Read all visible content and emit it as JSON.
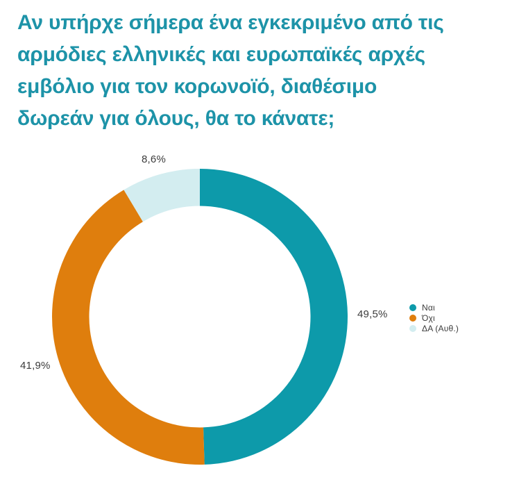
{
  "page": {
    "background": "#ffffff"
  },
  "chart_data": {
    "type": "pie",
    "subtype": "donut",
    "title": "Αν υπήρχε σήμερα ένα εγκεκριμένο από τις\nαρμόδιες ελληνικές και ευρωπαϊκές αρχές\nεμβόλιο για τον κορωνοϊό, διαθέσιμο\nδωρεάν για όλους, θα το κάνατε;",
    "title_color": "#1d93a8",
    "labels": [
      "Ναι",
      "Όχι",
      "ΔΑ (Αυθ.)"
    ],
    "values": [
      49.5,
      41.9,
      8.6
    ],
    "value_labels": [
      "49,5%",
      "41,9%",
      "8,6%"
    ],
    "colors": [
      "#0d9aaa",
      "#df7e0d",
      "#d3edf0"
    ],
    "start_angle_deg": 0,
    "direction": "clockwise",
    "legend_position": "right",
    "text_color": "#3b3b3b",
    "grid": false
  }
}
